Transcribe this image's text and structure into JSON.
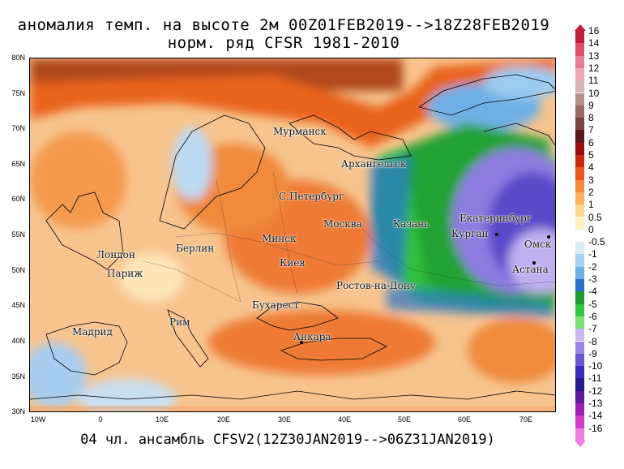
{
  "title_line1": "аномалия темп. на высоте 2м 00Z01FEB2019-->18Z28FEB2019",
  "title_line2": "норм. ряд CFSR 1981-2010",
  "footer": "04 чл. ансамбль CFSV2(12Z30JAN2019-->06Z31JAN2019)",
  "lat_labels": [
    "80N",
    "75N",
    "70N",
    "65N",
    "60N",
    "55N",
    "50N",
    "45N",
    "40N",
    "35N",
    "30N"
  ],
  "lon_labels": [
    "10W",
    "0",
    "10E",
    "20E",
    "30E",
    "40E",
    "50E",
    "60E",
    "70E"
  ],
  "cities": [
    {
      "name": "Мурманск"
    },
    {
      "name": "Архангельск"
    },
    {
      "name": "С.Петербург"
    },
    {
      "name": "Москва"
    },
    {
      "name": "Казань"
    },
    {
      "name": "Екатеринбург"
    },
    {
      "name": "Курган"
    },
    {
      "name": "Омск"
    },
    {
      "name": "Астана"
    },
    {
      "name": "Минск"
    },
    {
      "name": "Берлин"
    },
    {
      "name": "Лондон"
    },
    {
      "name": "Париж"
    },
    {
      "name": "Киев"
    },
    {
      "name": "Ростов-на-Дону"
    },
    {
      "name": "Бухарест"
    },
    {
      "name": "Рим"
    },
    {
      "name": "Мадрид"
    },
    {
      "name": "Анкара"
    }
  ],
  "legend": {
    "labels": [
      "16",
      "14",
      "13",
      "12",
      "11",
      "10",
      "9",
      "8",
      "7",
      "6",
      "5",
      "4",
      "3",
      "2",
      "1",
      "0.5",
      "0",
      "-0.5",
      "-1",
      "-2",
      "-3",
      "-4",
      "-5",
      "-6",
      "-7",
      "-8",
      "-9",
      "-10",
      "-11",
      "-12",
      "-13",
      "-14",
      "-16"
    ],
    "colors": [
      "#c0203a",
      "#e0506a",
      "#e57e92",
      "#eba8b4",
      "#d6b4b0",
      "#b89188",
      "#9a6a60",
      "#7a4440",
      "#5a1a1a",
      "#9a1010",
      "#c82810",
      "#e8581c",
      "#f58a3a",
      "#f9b460",
      "#fad88e",
      "#fff2c0",
      "#ffffff",
      "#d8ecf8",
      "#a8d0f0",
      "#70aee6",
      "#2a72c8",
      "#1e9a30",
      "#33c440",
      "#7ce070",
      "#c8b8f0",
      "#9a88e0",
      "#6a58d0",
      "#3c2ab8",
      "#2a1a90",
      "#5a1a9a",
      "#9a20b0",
      "#d040c8",
      "#f080e0"
    ]
  }
}
